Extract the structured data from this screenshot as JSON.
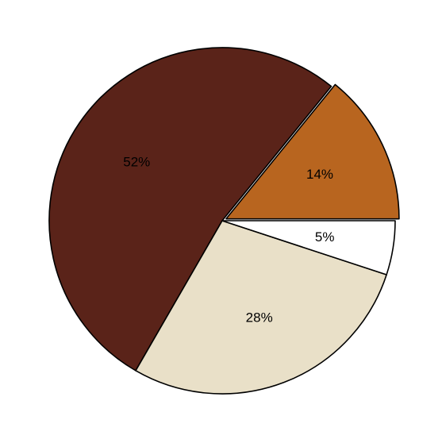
{
  "chart_data": {
    "type": "pie",
    "title": "",
    "legend": "none",
    "start_angle_deg": 0,
    "direction": "counterclockwise",
    "slices": [
      {
        "value": 14,
        "label": "14%",
        "color": "#b8651f",
        "explode": 0.025
      },
      {
        "value": 52,
        "label": "52%",
        "color": "#5a2319",
        "explode": 0
      },
      {
        "value": 28,
        "label": "28%",
        "color": "#e9e0c8",
        "explode": 0
      },
      {
        "value": 5,
        "label": "5%",
        "color": "#ffffff",
        "explode": 0
      }
    ]
  }
}
